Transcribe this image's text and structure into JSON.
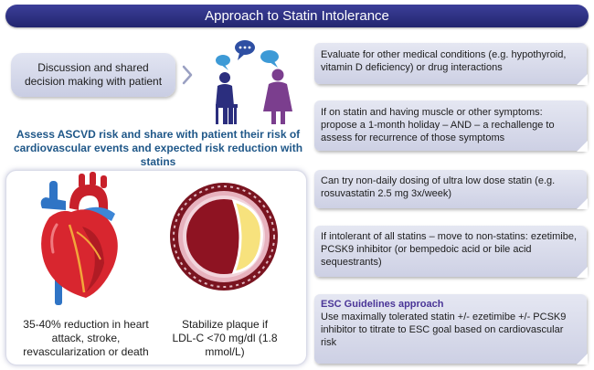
{
  "title": "Approach to Statin Intolerance",
  "discussion": "Discussion and shared decision making with patient",
  "assess": "Assess ASCVD risk and share with patient their risk of cardiovascular events and expected risk reduction with statins",
  "heart_caption": "35-40% reduction in heart attack, stroke, revascularization or death",
  "plaque_caption": "Stabilize plaque if LDL-C <70 mg/dl (1.8 mmol/L)",
  "steps": [
    "Evaluate for other medical conditions (e.g. hypothyroid, vitamin D deficiency) or drug interactions",
    "If on statin and having muscle or other symptoms: propose a 1-month holiday – AND – a rechallenge to assess for recurrence of those symptoms",
    "Can try non-daily dosing of ultra low dose statin (e.g. rosuvastatin 2.5 mg 3x/week)",
    "If intolerant of all statins – move to non-statins: ezetimibe, PCSK9 inhibitor (or bempedoic acid or bile acid sequestrants)"
  ],
  "esc": {
    "title": "ESC Guidelines approach",
    "body": "Use maximally tolerated statin +/- ezetimibe +/- PCSK9 inhibitor to titrate to ESC goal based on cardiovascular risk"
  },
  "colors": {
    "title_bar": "#2b2e7e",
    "assess_text": "#1f5788",
    "esc_title": "#4a3597",
    "box_fill": "#d9dcec"
  },
  "icons": [
    "people-talking-illustration",
    "heart-illustration",
    "artery-plaque-illustration",
    "arrow-right-icon"
  ]
}
